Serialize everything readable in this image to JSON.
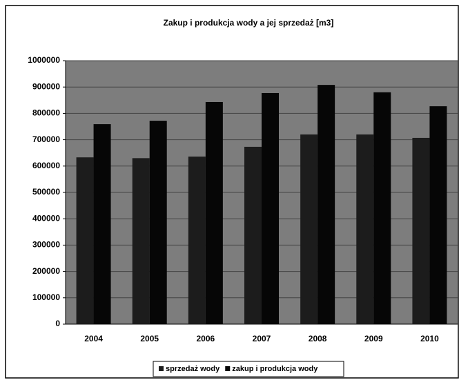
{
  "chart_data": {
    "type": "bar",
    "title": "Zakup i produkcja wody a jej sprzedaż [m3]",
    "categories": [
      "2004",
      "2005",
      "2006",
      "2007",
      "2008",
      "2009",
      "2010"
    ],
    "series": [
      {
        "name": "sprzedaż wody",
        "color": "#1c1c1c",
        "values": [
          633000,
          630000,
          636000,
          673000,
          720000,
          720000,
          707000
        ]
      },
      {
        "name": "zakup i produkcja wody",
        "color": "#060606",
        "values": [
          759000,
          772000,
          843000,
          877000,
          908000,
          880000,
          827000
        ]
      }
    ],
    "ylim": [
      0,
      1000000
    ],
    "yticks": [
      0,
      100000,
      200000,
      300000,
      400000,
      500000,
      600000,
      700000,
      800000,
      900000,
      1000000
    ],
    "grid": true
  }
}
